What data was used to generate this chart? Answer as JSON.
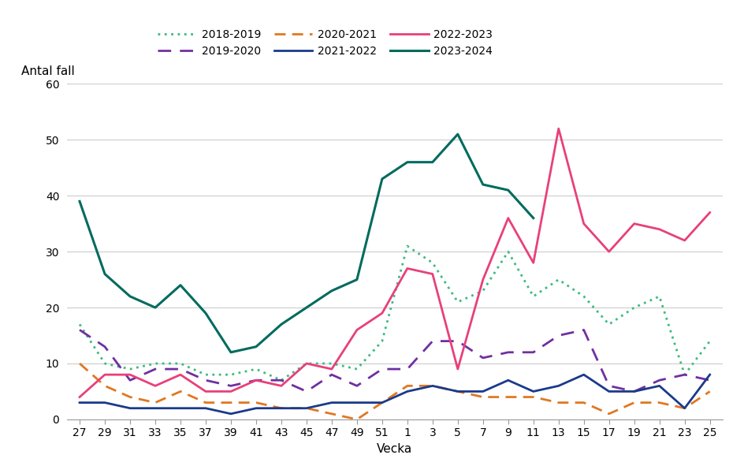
{
  "x_labels": [
    27,
    29,
    31,
    33,
    35,
    37,
    39,
    41,
    43,
    45,
    47,
    49,
    51,
    1,
    3,
    5,
    7,
    9,
    11,
    13,
    15,
    17,
    19,
    21,
    23,
    25
  ],
  "series_order": [
    "2018-2019",
    "2019-2020",
    "2020-2021",
    "2021-2022",
    "2022-2023",
    "2023-2024"
  ],
  "series": {
    "2018-2019": {
      "color": "#3CBB7E",
      "linestyle": "dotted",
      "linewidth": 2.0,
      "values": [
        17,
        10,
        9,
        10,
        10,
        8,
        8,
        9,
        7,
        10,
        10,
        9,
        14,
        31,
        28,
        21,
        23,
        30,
        22,
        25,
        22,
        17,
        20,
        22,
        8,
        14
      ]
    },
    "2019-2020": {
      "color": "#7030A0",
      "linestyle": "dashed",
      "linewidth": 2.0,
      "values": [
        16,
        13,
        7,
        9,
        9,
        7,
        6,
        7,
        7,
        5,
        8,
        6,
        9,
        9,
        14,
        14,
        11,
        12,
        12,
        15,
        16,
        6,
        5,
        7,
        8,
        7
      ]
    },
    "2020-2021": {
      "color": "#E07820",
      "linestyle": "dashed",
      "linewidth": 2.0,
      "values": [
        10,
        6,
        4,
        3,
        5,
        3,
        3,
        3,
        2,
        2,
        1,
        0,
        3,
        6,
        6,
        5,
        4,
        4,
        4,
        3,
        3,
        1,
        3,
        3,
        2,
        5
      ]
    },
    "2021-2022": {
      "color": "#1A3A8A",
      "linestyle": "solid",
      "linewidth": 2.0,
      "values": [
        3,
        3,
        2,
        2,
        2,
        2,
        1,
        2,
        2,
        2,
        3,
        3,
        3,
        5,
        6,
        5,
        5,
        7,
        5,
        6,
        8,
        5,
        5,
        6,
        2,
        8
      ]
    },
    "2022-2023": {
      "color": "#E8407A",
      "linestyle": "solid",
      "linewidth": 2.0,
      "values": [
        4,
        8,
        8,
        6,
        8,
        5,
        5,
        7,
        6,
        10,
        9,
        16,
        19,
        27,
        26,
        9,
        25,
        36,
        28,
        52,
        35,
        30,
        35,
        34,
        32,
        37
      ]
    },
    "2023-2024": {
      "color": "#006B5E",
      "linestyle": "solid",
      "linewidth": 2.2,
      "values": [
        39,
        26,
        22,
        20,
        24,
        19,
        12,
        13,
        17,
        20,
        23,
        25,
        43,
        46,
        46,
        51,
        42,
        41,
        36,
        null,
        null,
        null,
        null,
        null,
        null,
        null
      ]
    }
  },
  "ylabel": "Antal fall",
  "xlabel": "Vecka",
  "ylim": [
    0,
    60
  ],
  "yticks": [
    0,
    10,
    20,
    30,
    40,
    50,
    60
  ],
  "axis_fontsize": 11,
  "tick_fontsize": 10,
  "legend_fontsize": 10,
  "background_color": "#ffffff",
  "grid_color": "#cccccc"
}
